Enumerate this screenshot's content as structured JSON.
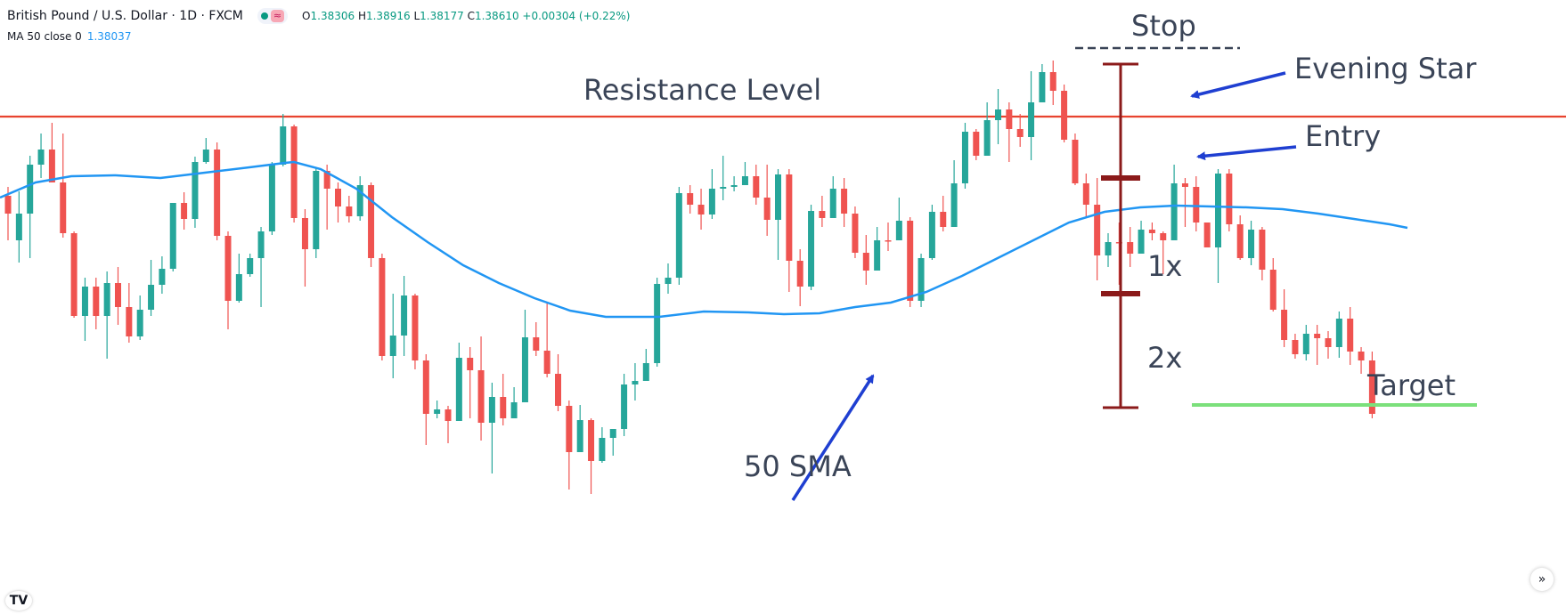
{
  "header": {
    "symbol": "British Pound / U.S. Dollar · 1D · FXCM",
    "approx_glyph": "≈",
    "open_label": "O",
    "open": "1.38306",
    "high_label": "H",
    "high": "1.38916",
    "low_label": "L",
    "low": "1.38177",
    "close_label": "C",
    "close": "1.38610",
    "change": "+0.00304 (+0.22%)"
  },
  "indicator": {
    "label": "MA 50 close 0",
    "value": "1.38037"
  },
  "annotations": {
    "resistance": "Resistance Level",
    "stop": "Stop",
    "evening_star": "Evening Star",
    "entry": "Entry",
    "one_x": "1x",
    "two_x": "2x",
    "target": "Target",
    "sma": "50 SMA"
  },
  "icons": {
    "logo": "tradingview-logo-icon",
    "scroll": "chevron-right-double-icon"
  },
  "colors": {
    "bull": "#26a69a",
    "bear": "#ef5350",
    "sma": "#2196f3",
    "resistance": "#e8432f",
    "risk_bar": "#8b1a1a",
    "target_line": "#7be07b",
    "arrow": "#1f3fd1",
    "stop_line": "#3a4457"
  },
  "chart_data": {
    "type": "candlestick",
    "instrument": "British Pound / U.S. Dollar",
    "ylim": [
      0,
      691
    ],
    "candles": [
      [
        220,
        240,
        270,
        210
      ],
      [
        270,
        240,
        295,
        215
      ],
      [
        240,
        185,
        290,
        175
      ],
      [
        185,
        168,
        200,
        150
      ],
      [
        168,
        205,
        195,
        138
      ],
      [
        205,
        262,
        267,
        150
      ],
      [
        262,
        355,
        357,
        260
      ],
      [
        355,
        322,
        383,
        312
      ],
      [
        322,
        355,
        370,
        312
      ],
      [
        355,
        318,
        403,
        305
      ],
      [
        318,
        345,
        365,
        300
      ],
      [
        345,
        378,
        385,
        318
      ],
      [
        378,
        348,
        382,
        332
      ],
      [
        348,
        320,
        355,
        292
      ],
      [
        320,
        302,
        330,
        288
      ],
      [
        302,
        228,
        305,
        228
      ],
      [
        228,
        246,
        258,
        216
      ],
      [
        246,
        182,
        256,
        176
      ],
      [
        182,
        168,
        184,
        155
      ],
      [
        168,
        265,
        270,
        160
      ],
      [
        265,
        338,
        370,
        260
      ],
      [
        338,
        308,
        340,
        285
      ],
      [
        308,
        290,
        311,
        285
      ],
      [
        290,
        260,
        345,
        255
      ],
      [
        260,
        185,
        264,
        182
      ],
      [
        185,
        142,
        187,
        128
      ],
      [
        142,
        245,
        250,
        140
      ],
      [
        245,
        280,
        322,
        235
      ],
      [
        280,
        192,
        290,
        188
      ],
      [
        192,
        212,
        258,
        185
      ],
      [
        212,
        232,
        250,
        205
      ],
      [
        232,
        243,
        250,
        220
      ],
      [
        243,
        208,
        248,
        198
      ],
      [
        208,
        290,
        300,
        205
      ],
      [
        290,
        400,
        405,
        285
      ],
      [
        400,
        377,
        425,
        330
      ],
      [
        377,
        332,
        400,
        310
      ],
      [
        332,
        405,
        415,
        330
      ],
      [
        405,
        465,
        500,
        398
      ],
      [
        465,
        460,
        470,
        450
      ],
      [
        460,
        473,
        498,
        456
      ],
      [
        473,
        402,
        430,
        385
      ],
      [
        402,
        416,
        470,
        390
      ],
      [
        416,
        475,
        495,
        378
      ],
      [
        475,
        446,
        532,
        430
      ],
      [
        446,
        470,
        478,
        420
      ],
      [
        470,
        452,
        458,
        435
      ],
      [
        452,
        379,
        388,
        348
      ],
      [
        379,
        394,
        400,
        362
      ],
      [
        394,
        420,
        424,
        340
      ],
      [
        420,
        456,
        462,
        398
      ],
      [
        456,
        508,
        550,
        450
      ],
      [
        508,
        472,
        480,
        455
      ],
      [
        472,
        518,
        555,
        470
      ],
      [
        518,
        492,
        520,
        480
      ],
      [
        492,
        482,
        512,
        485
      ],
      [
        482,
        432,
        490,
        420
      ],
      [
        432,
        428,
        450,
        408
      ],
      [
        428,
        408,
        416,
        392
      ],
      [
        408,
        319,
        412,
        312
      ],
      [
        319,
        312,
        330,
        296
      ],
      [
        312,
        217,
        320,
        210
      ],
      [
        217,
        230,
        240,
        208
      ],
      [
        230,
        241,
        258,
        212
      ],
      [
        241,
        212,
        246,
        190
      ],
      [
        212,
        210,
        225,
        175
      ],
      [
        210,
        208,
        215,
        198
      ],
      [
        208,
        198,
        202,
        182
      ],
      [
        198,
        222,
        230,
        185
      ],
      [
        222,
        247,
        265,
        185
      ],
      [
        247,
        196,
        292,
        190
      ],
      [
        196,
        293,
        328,
        190
      ],
      [
        293,
        322,
        344,
        280
      ],
      [
        322,
        237,
        326,
        230
      ],
      [
        237,
        245,
        255,
        220
      ],
      [
        245,
        212,
        222,
        198
      ],
      [
        212,
        240,
        255,
        200
      ],
      [
        240,
        284,
        290,
        232
      ],
      [
        284,
        304,
        320,
        264
      ],
      [
        304,
        270,
        303,
        255
      ],
      [
        270,
        270,
        282,
        250
      ],
      [
        270,
        248,
        260,
        222
      ],
      [
        248,
        338,
        345,
        244
      ],
      [
        338,
        290,
        345,
        285
      ],
      [
        290,
        238,
        292,
        230
      ],
      [
        238,
        255,
        260,
        220
      ],
      [
        255,
        206,
        215,
        180
      ],
      [
        206,
        148,
        212,
        138
      ],
      [
        148,
        175,
        180,
        145
      ],
      [
        175,
        135,
        172,
        115
      ],
      [
        135,
        123,
        162,
        100
      ],
      [
        123,
        145,
        182,
        115
      ],
      [
        145,
        154,
        165,
        128
      ],
      [
        154,
        115,
        180,
        80
      ],
      [
        115,
        81,
        88,
        72
      ],
      [
        81,
        102,
        118,
        68
      ],
      [
        102,
        157,
        160,
        95
      ],
      [
        157,
        206,
        208,
        150
      ],
      [
        206,
        230,
        245,
        195
      ],
      [
        230,
        287,
        315,
        200
      ],
      [
        287,
        272,
        300,
        262
      ],
      [
        272,
        272,
        320,
        250
      ],
      [
        272,
        285,
        300,
        255
      ],
      [
        285,
        258,
        262,
        248
      ],
      [
        258,
        262,
        270,
        250
      ],
      [
        262,
        270,
        308,
        260
      ],
      [
        270,
        206,
        210,
        185
      ],
      [
        206,
        210,
        255,
        200
      ],
      [
        210,
        250,
        260,
        198
      ],
      [
        250,
        278,
        275,
        262
      ],
      [
        278,
        195,
        318,
        190
      ],
      [
        195,
        252,
        260,
        190
      ],
      [
        252,
        290,
        292,
        242
      ],
      [
        290,
        258,
        298,
        248
      ],
      [
        258,
        303,
        315,
        255
      ],
      [
        303,
        348,
        350,
        290
      ],
      [
        348,
        382,
        390,
        325
      ],
      [
        382,
        398,
        403,
        375
      ],
      [
        398,
        375,
        405,
        365
      ],
      [
        375,
        380,
        410,
        365
      ],
      [
        380,
        390,
        403,
        372
      ],
      [
        390,
        358,
        402,
        350
      ],
      [
        358,
        395,
        410,
        345
      ],
      [
        395,
        405,
        420,
        390
      ],
      [
        405,
        465,
        470,
        395
      ]
    ],
    "sma50_path": [
      [
        0,
        222
      ],
      [
        40,
        205
      ],
      [
        80,
        198
      ],
      [
        130,
        197
      ],
      [
        180,
        200
      ],
      [
        230,
        194
      ],
      [
        280,
        188
      ],
      [
        320,
        183
      ],
      [
        330,
        182
      ],
      [
        360,
        190
      ],
      [
        400,
        212
      ],
      [
        440,
        244
      ],
      [
        480,
        272
      ],
      [
        520,
        298
      ],
      [
        560,
        318
      ],
      [
        600,
        335
      ],
      [
        640,
        349
      ],
      [
        680,
        356
      ],
      [
        740,
        356
      ],
      [
        790,
        350
      ],
      [
        840,
        351
      ],
      [
        880,
        353
      ],
      [
        920,
        352
      ],
      [
        960,
        345
      ],
      [
        1000,
        340
      ],
      [
        1040,
        328
      ],
      [
        1080,
        310
      ],
      [
        1120,
        290
      ],
      [
        1160,
        270
      ],
      [
        1200,
        250
      ],
      [
        1240,
        238
      ],
      [
        1280,
        233
      ],
      [
        1320,
        231
      ],
      [
        1360,
        232
      ],
      [
        1400,
        233
      ],
      [
        1440,
        235
      ],
      [
        1480,
        240
      ],
      [
        1520,
        246
      ],
      [
        1560,
        252
      ],
      [
        1580,
        256
      ]
    ],
    "resistance_y": 131
  }
}
